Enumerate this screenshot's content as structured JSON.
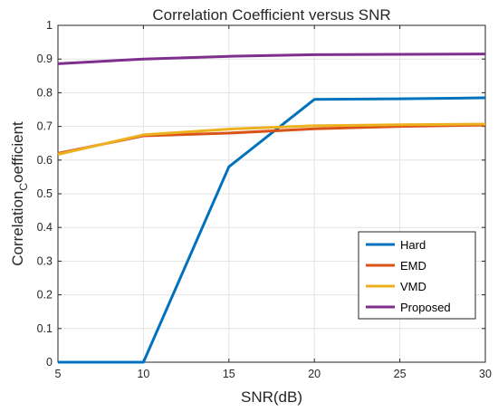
{
  "chart_data": {
    "type": "line",
    "title": "Correlation Coefficient versus SNR",
    "xlabel": "SNR(dB)",
    "ylabel": {
      "main": "Correlation",
      "sub": "C",
      "rest": "oefficient"
    },
    "xlim": [
      5,
      30
    ],
    "ylim": [
      0,
      1
    ],
    "xticks": [
      5,
      10,
      15,
      20,
      25,
      30
    ],
    "yticks": [
      0,
      0.1,
      0.2,
      0.3,
      0.4,
      0.5,
      0.6,
      0.7,
      0.8,
      0.9,
      1
    ],
    "grid": true,
    "legend_position": "bottom-right",
    "x": [
      5,
      10,
      15,
      20,
      25,
      30
    ],
    "series": [
      {
        "name": "Hard",
        "color": "#0072BD",
        "values": [
          0.0,
          0.0,
          0.58,
          0.78,
          0.782,
          0.785
        ]
      },
      {
        "name": "EMD",
        "color": "#D95319",
        "values": [
          0.62,
          0.672,
          0.68,
          0.693,
          0.7,
          0.704
        ]
      },
      {
        "name": "VMD",
        "color": "#EDB120",
        "values": [
          0.617,
          0.675,
          0.692,
          0.702,
          0.705,
          0.707
        ]
      },
      {
        "name": "Proposed",
        "color": "#7E2F8E",
        "values": [
          0.886,
          0.9,
          0.908,
          0.913,
          0.914,
          0.915
        ]
      }
    ]
  }
}
